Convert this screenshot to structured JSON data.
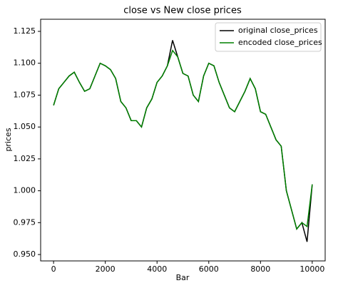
{
  "chart_data": {
    "type": "line",
    "title": "close vs New close prices",
    "xlabel": "Bar",
    "ylabel": "prices",
    "x": [
      0,
      200,
      400,
      600,
      800,
      1000,
      1200,
      1400,
      1600,
      1800,
      2000,
      2200,
      2400,
      2600,
      2800,
      3000,
      3200,
      3400,
      3600,
      3800,
      4000,
      4200,
      4400,
      4600,
      4800,
      5000,
      5200,
      5400,
      5600,
      5800,
      6000,
      6200,
      6400,
      6600,
      6800,
      7000,
      7200,
      7400,
      7600,
      7800,
      8000,
      8200,
      8400,
      8600,
      8800,
      9000,
      9200,
      9400,
      9600,
      9800,
      10000
    ],
    "series": [
      {
        "name": "original close_prices",
        "color": "#000000",
        "values": [
          1.067,
          1.08,
          1.085,
          1.09,
          1.093,
          1.085,
          1.078,
          1.08,
          1.09,
          1.1,
          1.098,
          1.095,
          1.088,
          1.07,
          1.065,
          1.055,
          1.055,
          1.05,
          1.065,
          1.072,
          1.085,
          1.09,
          1.098,
          1.118,
          1.105,
          1.092,
          1.09,
          1.075,
          1.07,
          1.09,
          1.1,
          1.098,
          1.085,
          1.075,
          1.065,
          1.062,
          1.07,
          1.078,
          1.088,
          1.08,
          1.062,
          1.06,
          1.05,
          1.04,
          1.035,
          1.0,
          0.985,
          0.97,
          0.975,
          0.96,
          1.005
        ]
      },
      {
        "name": "encoded close_prices",
        "color": "#008000",
        "values": [
          1.067,
          1.08,
          1.085,
          1.09,
          1.093,
          1.085,
          1.078,
          1.08,
          1.09,
          1.1,
          1.098,
          1.095,
          1.088,
          1.07,
          1.065,
          1.055,
          1.055,
          1.05,
          1.065,
          1.072,
          1.085,
          1.09,
          1.098,
          1.11,
          1.105,
          1.092,
          1.09,
          1.075,
          1.07,
          1.09,
          1.1,
          1.098,
          1.085,
          1.075,
          1.065,
          1.062,
          1.07,
          1.078,
          1.088,
          1.08,
          1.062,
          1.06,
          1.05,
          1.04,
          1.035,
          1.0,
          0.985,
          0.97,
          0.975,
          0.972,
          1.005
        ]
      }
    ],
    "xlim": [
      -500,
      10500
    ],
    "xticks": [
      0,
      2000,
      4000,
      6000,
      8000,
      10000
    ],
    "ylim": [
      0.945,
      1.1345
    ],
    "yticks": [
      {
        "value": 0.95,
        "label": "0.950"
      },
      0.975,
      {
        "value": 1.0,
        "label": "1.000"
      },
      1.025,
      {
        "value": 1.05,
        "label": "1.050"
      },
      1.075,
      {
        "value": 1.1,
        "label": "1.100"
      },
      1.125
    ],
    "legend": "upper right"
  }
}
